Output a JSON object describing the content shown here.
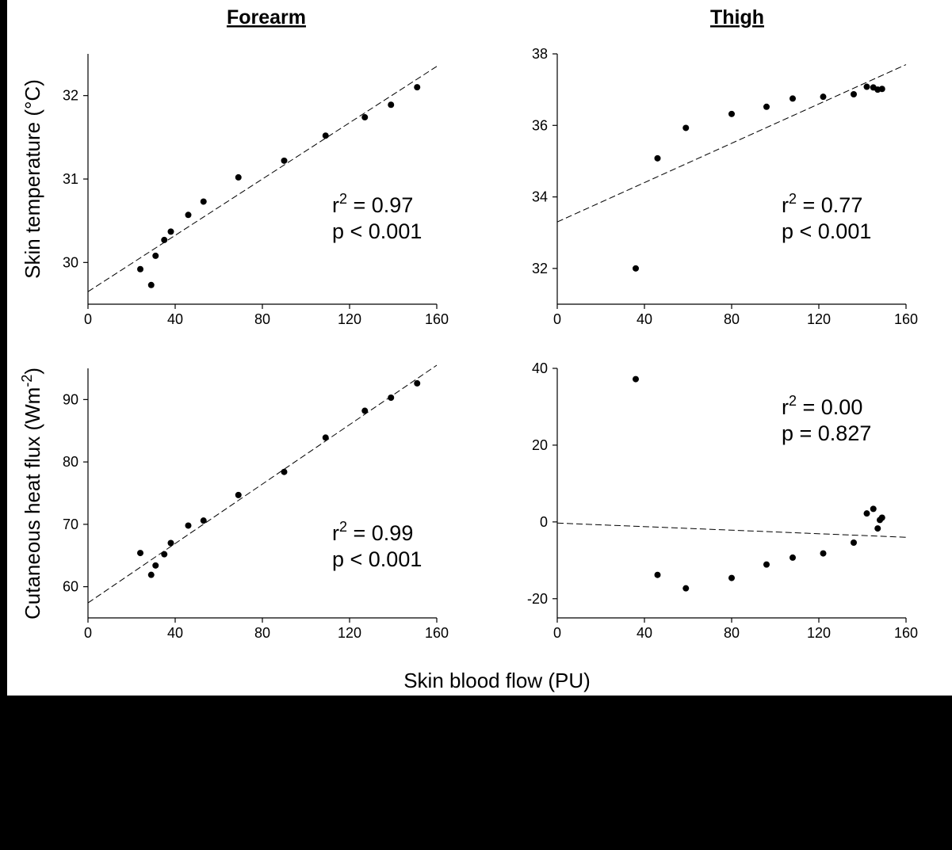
{
  "chart_data": [
    {
      "id": "forearm-temp",
      "type": "scatter",
      "column_title": "Forearm",
      "ylabel": "Skin temperature (°C)",
      "xlim": [
        0,
        160
      ],
      "ylim": [
        29.5,
        32.5
      ],
      "xticks": [
        0,
        40,
        80,
        120,
        160
      ],
      "yticks": [
        30,
        31,
        32
      ],
      "points": [
        [
          24,
          29.92
        ],
        [
          29,
          29.73
        ],
        [
          31,
          30.08
        ],
        [
          35,
          30.27
        ],
        [
          38,
          30.37
        ],
        [
          46,
          30.57
        ],
        [
          53,
          30.73
        ],
        [
          69,
          31.02
        ],
        [
          90,
          31.22
        ],
        [
          109,
          31.52
        ],
        [
          127,
          31.74
        ],
        [
          139,
          31.89
        ],
        [
          151,
          32.1
        ]
      ],
      "fit": {
        "x": [
          0,
          160
        ],
        "y": [
          29.65,
          32.35
        ]
      },
      "stats": {
        "r_prefix": "r",
        "r_sup": "2",
        "r_value": " = 0.97",
        "p": "p < 0.001"
      }
    },
    {
      "id": "thigh-temp",
      "type": "scatter",
      "column_title": "Thigh",
      "xlim": [
        0,
        160
      ],
      "ylim": [
        31,
        38
      ],
      "xticks": [
        0,
        40,
        80,
        120,
        160
      ],
      "yticks": [
        32,
        34,
        36,
        38
      ],
      "points": [
        [
          36,
          32.0
        ],
        [
          46,
          35.08
        ],
        [
          59,
          35.93
        ],
        [
          80,
          36.32
        ],
        [
          96,
          36.52
        ],
        [
          108,
          36.75
        ],
        [
          122,
          36.8
        ],
        [
          136,
          36.87
        ],
        [
          142,
          37.08
        ],
        [
          145,
          37.06
        ],
        [
          147,
          37.0
        ],
        [
          149,
          37.02
        ]
      ],
      "fit": {
        "x": [
          0,
          160
        ],
        "y": [
          33.3,
          37.7
        ]
      },
      "stats": {
        "r_prefix": "r",
        "r_sup": "2",
        "r_value": " = 0.77",
        "p": "p < 0.001"
      }
    },
    {
      "id": "forearm-flux",
      "type": "scatter",
      "ylabel_main": "Cutaneous heat flux (Wm",
      "ylabel_sup": "-2",
      "ylabel_end": ")",
      "xlim": [
        0,
        160
      ],
      "ylim": [
        55,
        95
      ],
      "xticks": [
        0,
        40,
        80,
        120,
        160
      ],
      "yticks": [
        60,
        70,
        80,
        90
      ],
      "points": [
        [
          24,
          65.4
        ],
        [
          29,
          61.9
        ],
        [
          31,
          63.4
        ],
        [
          35,
          65.2
        ],
        [
          38,
          67.0
        ],
        [
          46,
          69.8
        ],
        [
          53,
          70.6
        ],
        [
          69,
          74.7
        ],
        [
          90,
          78.4
        ],
        [
          109,
          83.9
        ],
        [
          127,
          88.2
        ],
        [
          139,
          90.3
        ],
        [
          151,
          92.6
        ]
      ],
      "fit": {
        "x": [
          0,
          160
        ],
        "y": [
          57.4,
          95.5
        ]
      },
      "stats": {
        "r_prefix": "r",
        "r_sup": "2",
        "r_value": " = 0.99",
        "p": "p < 0.001"
      }
    },
    {
      "id": "thigh-flux",
      "type": "scatter",
      "xlim": [
        0,
        160
      ],
      "ylim": [
        -25,
        40
      ],
      "xticks": [
        0,
        40,
        80,
        120,
        160
      ],
      "yticks": [
        -20,
        0,
        20,
        40
      ],
      "points": [
        [
          36,
          37.2
        ],
        [
          46,
          -13.8
        ],
        [
          59,
          -17.3
        ],
        [
          80,
          -14.6
        ],
        [
          96,
          -11.1
        ],
        [
          108,
          -9.3
        ],
        [
          122,
          -8.2
        ],
        [
          136,
          -5.4
        ],
        [
          142,
          2.2
        ],
        [
          145,
          3.4
        ],
        [
          147,
          -1.7
        ],
        [
          148,
          0.5
        ],
        [
          149,
          1.1
        ]
      ],
      "fit": {
        "x": [
          0,
          160
        ],
        "y": [
          -0.3,
          -4.0
        ]
      },
      "stats": {
        "r_prefix": "r",
        "r_sup": "2",
        "r_value": " = 0.00",
        "p": "p = 0.827"
      }
    }
  ],
  "shared_xlabel": "Skin blood flow (PU)",
  "colors": {
    "background": "#000000",
    "panel": "#ffffff",
    "ink": "#000000"
  }
}
